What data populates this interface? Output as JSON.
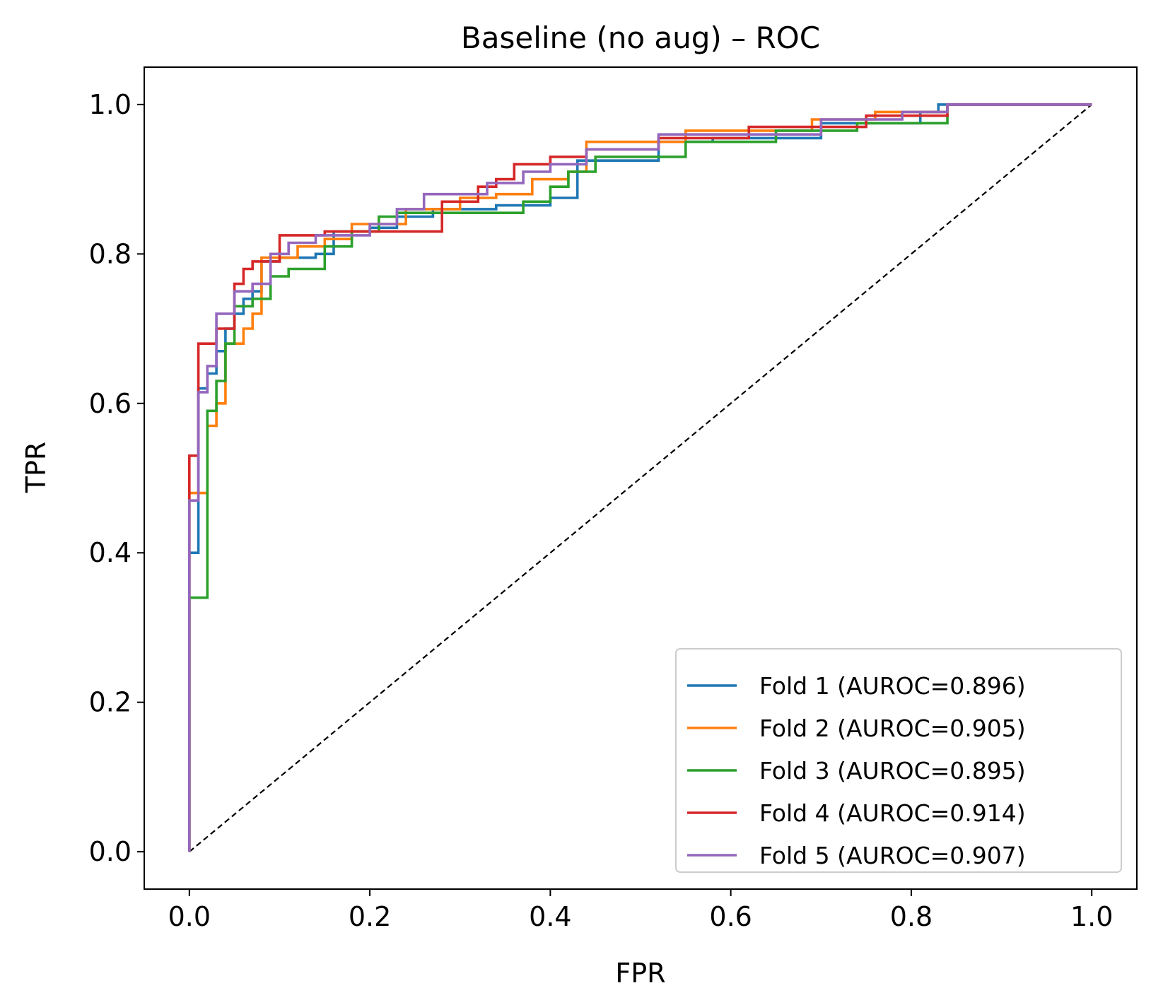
{
  "chart_data": {
    "type": "line",
    "title": "Baseline (no aug) – ROC",
    "xlabel": "FPR",
    "ylabel": "TPR",
    "xlim": [
      -0.05,
      1.05
    ],
    "ylim": [
      -0.05,
      1.05
    ],
    "xticks": [
      0.0,
      0.2,
      0.4,
      0.6,
      0.8,
      1.0
    ],
    "yticks": [
      0.0,
      0.2,
      0.4,
      0.6,
      0.8,
      1.0
    ],
    "xtick_labels": [
      "0.0",
      "0.2",
      "0.4",
      "0.6",
      "0.8",
      "1.0"
    ],
    "ytick_labels": [
      "0.0",
      "0.2",
      "0.4",
      "0.6",
      "0.8",
      "1.0"
    ],
    "grid": false,
    "legend_position": "lower-right",
    "diagonal": {
      "x": [
        0,
        1
      ],
      "y": [
        0,
        1
      ],
      "color": "#000000",
      "style": "dashed"
    },
    "series": [
      {
        "name": "Fold 1 (AUROC=0.896)",
        "color": "#1f77b4",
        "x": [
          0,
          0,
          0.01,
          0.01,
          0.02,
          0.02,
          0.03,
          0.03,
          0.04,
          0.04,
          0.05,
          0.05,
          0.06,
          0.06,
          0.07,
          0.07,
          0.08,
          0.08,
          0.1,
          0.1,
          0.14,
          0.14,
          0.16,
          0.16,
          0.2,
          0.2,
          0.23,
          0.23,
          0.27,
          0.27,
          0.34,
          0.34,
          0.4,
          0.4,
          0.43,
          0.43,
          0.52,
          0.52,
          0.58,
          0.58,
          0.7,
          0.7,
          0.81,
          0.81,
          0.83,
          0.83,
          1.0
        ],
        "y": [
          0,
          0.4,
          0.4,
          0.62,
          0.62,
          0.64,
          0.64,
          0.67,
          0.67,
          0.7,
          0.7,
          0.72,
          0.72,
          0.74,
          0.74,
          0.75,
          0.75,
          0.79,
          0.79,
          0.795,
          0.795,
          0.8,
          0.8,
          0.83,
          0.83,
          0.835,
          0.835,
          0.85,
          0.85,
          0.86,
          0.86,
          0.865,
          0.865,
          0.875,
          0.875,
          0.925,
          0.925,
          0.95,
          0.95,
          0.955,
          0.955,
          0.975,
          0.975,
          0.99,
          0.99,
          1.0,
          1.0
        ]
      },
      {
        "name": "Fold 2 (AUROC=0.905)",
        "color": "#ff7f0e",
        "x": [
          0,
          0,
          0.02,
          0.02,
          0.03,
          0.03,
          0.04,
          0.04,
          0.06,
          0.06,
          0.07,
          0.07,
          0.08,
          0.08,
          0.12,
          0.12,
          0.15,
          0.15,
          0.18,
          0.18,
          0.24,
          0.24,
          0.3,
          0.3,
          0.34,
          0.34,
          0.38,
          0.38,
          0.42,
          0.42,
          0.44,
          0.44,
          0.55,
          0.55,
          0.69,
          0.69,
          0.76,
          0.76,
          0.84,
          0.84,
          1.0
        ],
        "y": [
          0,
          0.48,
          0.48,
          0.57,
          0.57,
          0.6,
          0.6,
          0.68,
          0.68,
          0.7,
          0.7,
          0.72,
          0.72,
          0.795,
          0.795,
          0.81,
          0.81,
          0.82,
          0.82,
          0.84,
          0.84,
          0.86,
          0.86,
          0.875,
          0.875,
          0.88,
          0.88,
          0.9,
          0.9,
          0.91,
          0.91,
          0.95,
          0.95,
          0.965,
          0.965,
          0.98,
          0.98,
          0.99,
          0.99,
          1.0,
          1.0
        ]
      },
      {
        "name": "Fold 3 (AUROC=0.895)",
        "color": "#2ca02c",
        "x": [
          0,
          0,
          0.02,
          0.02,
          0.03,
          0.03,
          0.04,
          0.04,
          0.05,
          0.05,
          0.07,
          0.07,
          0.09,
          0.09,
          0.11,
          0.11,
          0.15,
          0.15,
          0.18,
          0.18,
          0.21,
          0.21,
          0.23,
          0.23,
          0.37,
          0.37,
          0.4,
          0.4,
          0.42,
          0.42,
          0.45,
          0.45,
          0.55,
          0.55,
          0.65,
          0.65,
          0.74,
          0.74,
          0.84,
          0.84,
          1.0
        ],
        "y": [
          0,
          0.34,
          0.34,
          0.59,
          0.59,
          0.63,
          0.63,
          0.68,
          0.68,
          0.73,
          0.73,
          0.74,
          0.74,
          0.77,
          0.77,
          0.78,
          0.78,
          0.81,
          0.81,
          0.83,
          0.83,
          0.85,
          0.85,
          0.855,
          0.855,
          0.87,
          0.87,
          0.89,
          0.89,
          0.91,
          0.91,
          0.93,
          0.93,
          0.95,
          0.95,
          0.965,
          0.965,
          0.975,
          0.975,
          1.0,
          1.0
        ]
      },
      {
        "name": "Fold 4 (AUROC=0.914)",
        "color": "#d62728",
        "x": [
          0,
          0,
          0.01,
          0.01,
          0.03,
          0.03,
          0.05,
          0.05,
          0.06,
          0.06,
          0.07,
          0.07,
          0.1,
          0.1,
          0.15,
          0.15,
          0.28,
          0.28,
          0.32,
          0.32,
          0.34,
          0.34,
          0.36,
          0.36,
          0.4,
          0.4,
          0.44,
          0.44,
          0.52,
          0.52,
          0.62,
          0.62,
          0.75,
          0.75,
          0.84,
          0.84,
          1.0
        ],
        "y": [
          0,
          0.53,
          0.53,
          0.68,
          0.68,
          0.7,
          0.7,
          0.76,
          0.76,
          0.78,
          0.78,
          0.79,
          0.79,
          0.825,
          0.825,
          0.83,
          0.83,
          0.87,
          0.87,
          0.89,
          0.89,
          0.9,
          0.9,
          0.92,
          0.92,
          0.93,
          0.93,
          0.94,
          0.94,
          0.955,
          0.955,
          0.97,
          0.97,
          0.985,
          0.985,
          1.0,
          1.0
        ]
      },
      {
        "name": "Fold 5 (AUROC=0.907)",
        "color": "#9467bd",
        "x": [
          0,
          0,
          0.01,
          0.01,
          0.02,
          0.02,
          0.03,
          0.03,
          0.05,
          0.05,
          0.07,
          0.07,
          0.09,
          0.09,
          0.11,
          0.11,
          0.14,
          0.14,
          0.2,
          0.2,
          0.23,
          0.23,
          0.26,
          0.26,
          0.33,
          0.33,
          0.37,
          0.37,
          0.4,
          0.4,
          0.44,
          0.44,
          0.52,
          0.52,
          0.7,
          0.7,
          0.79,
          0.79,
          0.84,
          0.84,
          1.0
        ],
        "y": [
          0,
          0.47,
          0.47,
          0.615,
          0.615,
          0.65,
          0.65,
          0.72,
          0.72,
          0.75,
          0.75,
          0.76,
          0.76,
          0.8,
          0.8,
          0.815,
          0.815,
          0.825,
          0.825,
          0.84,
          0.84,
          0.86,
          0.86,
          0.88,
          0.88,
          0.895,
          0.895,
          0.91,
          0.91,
          0.92,
          0.92,
          0.94,
          0.94,
          0.96,
          0.96,
          0.98,
          0.98,
          0.99,
          0.99,
          1.0,
          1.0
        ]
      }
    ]
  }
}
